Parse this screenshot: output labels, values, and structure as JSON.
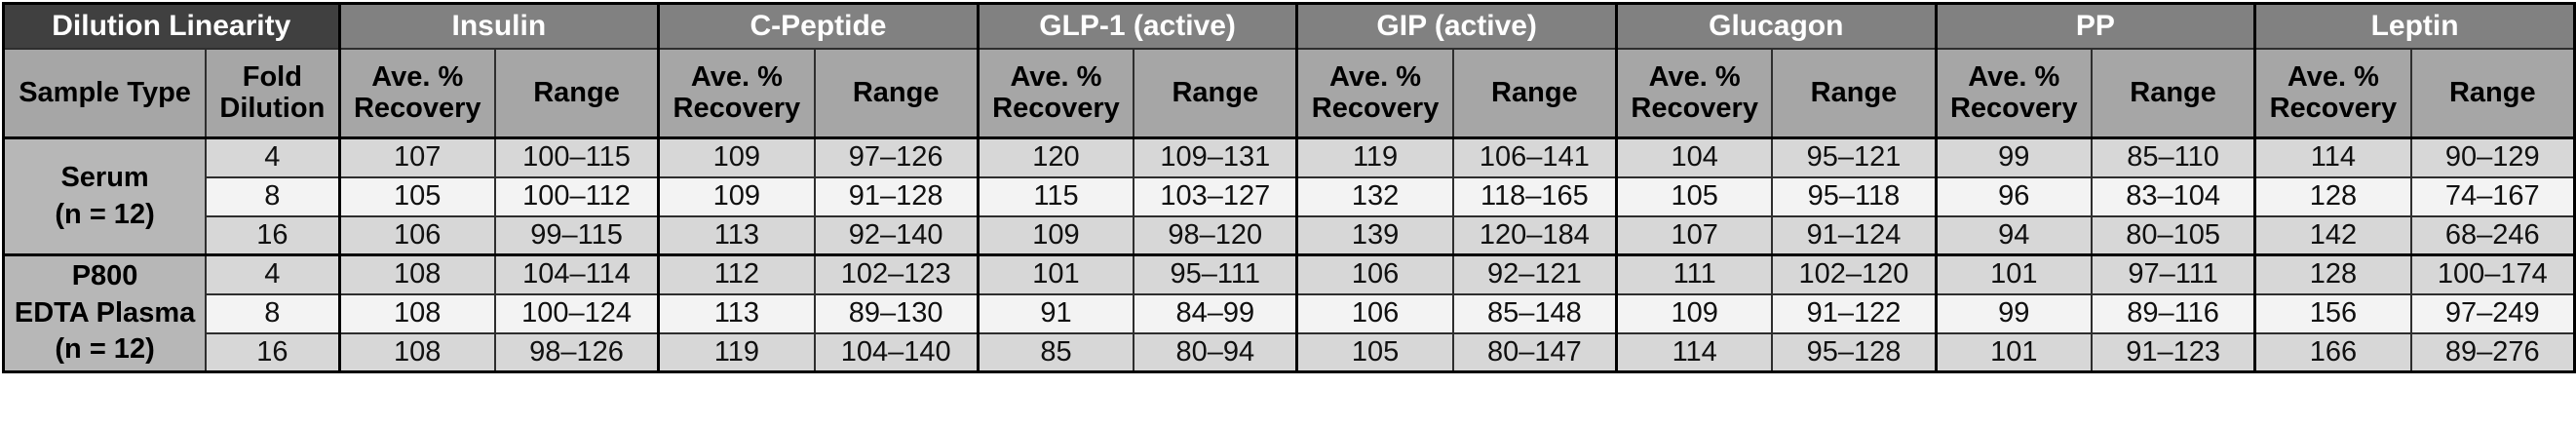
{
  "title": "Dilution Linearity",
  "colors": {
    "corner_header_bg": "#404040",
    "analyte_header_bg": "#818181",
    "subheader_bg": "#a6a6a6",
    "sample_cell_bg": "#b7b7b7",
    "row_gray_bg": "#d7d7d7",
    "row_light_bg": "#f3f3f3",
    "header_text": "#ffffff",
    "body_text": "#101010",
    "border": "#000000"
  },
  "table": {
    "corner_header": "Dilution Linearity",
    "analytes": [
      "Insulin",
      "C-Peptide",
      "GLP-1 (active)",
      "GIP (active)",
      "Glucagon",
      "PP",
      "Leptin"
    ],
    "sub_headers": {
      "sample_type": "Sample Type",
      "fold_dilution": "Fold\nDilution",
      "ave_recovery": "Ave. %\nRecovery",
      "range": "Range"
    },
    "sections": [
      {
        "sample_type": "Serum\n(n = 12)",
        "rows": [
          {
            "fold": "4",
            "values": [
              {
                "analyte": "Insulin",
                "ave": "107",
                "range": "100–115"
              },
              {
                "analyte": "C-Peptide",
                "ave": "109",
                "range": "97–126"
              },
              {
                "analyte": "GLP-1 (active)",
                "ave": "120",
                "range": "109–131"
              },
              {
                "analyte": "GIP (active)",
                "ave": "119",
                "range": "106–141"
              },
              {
                "analyte": "Glucagon",
                "ave": "104",
                "range": "95–121"
              },
              {
                "analyte": "PP",
                "ave": "99",
                "range": "85–110"
              },
              {
                "analyte": "Leptin",
                "ave": "114",
                "range": "90–129"
              }
            ]
          },
          {
            "fold": "8",
            "values": [
              {
                "analyte": "Insulin",
                "ave": "105",
                "range": "100–112"
              },
              {
                "analyte": "C-Peptide",
                "ave": "109",
                "range": "91–128"
              },
              {
                "analyte": "GLP-1 (active)",
                "ave": "115",
                "range": "103–127"
              },
              {
                "analyte": "GIP (active)",
                "ave": "132",
                "range": "118–165"
              },
              {
                "analyte": "Glucagon",
                "ave": "105",
                "range": "95–118"
              },
              {
                "analyte": "PP",
                "ave": "96",
                "range": "83–104"
              },
              {
                "analyte": "Leptin",
                "ave": "128",
                "range": "74–167"
              }
            ]
          },
          {
            "fold": "16",
            "values": [
              {
                "analyte": "Insulin",
                "ave": "106",
                "range": "99–115"
              },
              {
                "analyte": "C-Peptide",
                "ave": "113",
                "range": "92–140"
              },
              {
                "analyte": "GLP-1 (active)",
                "ave": "109",
                "range": "98–120"
              },
              {
                "analyte": "GIP (active)",
                "ave": "139",
                "range": "120–184"
              },
              {
                "analyte": "Glucagon",
                "ave": "107",
                "range": "91–124"
              },
              {
                "analyte": "PP",
                "ave": "94",
                "range": "80–105"
              },
              {
                "analyte": "Leptin",
                "ave": "142",
                "range": "68–246"
              }
            ]
          }
        ]
      },
      {
        "sample_type": "P800\nEDTA Plasma\n(n = 12)",
        "rows": [
          {
            "fold": "4",
            "values": [
              {
                "analyte": "Insulin",
                "ave": "108",
                "range": "104–114"
              },
              {
                "analyte": "C-Peptide",
                "ave": "112",
                "range": "102–123"
              },
              {
                "analyte": "GLP-1 (active)",
                "ave": "101",
                "range": "95–111"
              },
              {
                "analyte": "GIP (active)",
                "ave": "106",
                "range": "92–121"
              },
              {
                "analyte": "Glucagon",
                "ave": "111",
                "range": "102–120"
              },
              {
                "analyte": "PP",
                "ave": "101",
                "range": "97–111"
              },
              {
                "analyte": "Leptin",
                "ave": "128",
                "range": "100–174"
              }
            ]
          },
          {
            "fold": "8",
            "values": [
              {
                "analyte": "Insulin",
                "ave": "108",
                "range": "100–124"
              },
              {
                "analyte": "C-Peptide",
                "ave": "113",
                "range": "89–130"
              },
              {
                "analyte": "GLP-1 (active)",
                "ave": "91",
                "range": "84–99"
              },
              {
                "analyte": "GIP (active)",
                "ave": "106",
                "range": "85–148"
              },
              {
                "analyte": "Glucagon",
                "ave": "109",
                "range": "91–122"
              },
              {
                "analyte": "PP",
                "ave": "99",
                "range": "89–116"
              },
              {
                "analyte": "Leptin",
                "ave": "156",
                "range": "97–249"
              }
            ]
          },
          {
            "fold": "16",
            "values": [
              {
                "analyte": "Insulin",
                "ave": "108",
                "range": "98–126"
              },
              {
                "analyte": "C-Peptide",
                "ave": "119",
                "range": "104–140"
              },
              {
                "analyte": "GLP-1 (active)",
                "ave": "85",
                "range": "80–94"
              },
              {
                "analyte": "GIP (active)",
                "ave": "105",
                "range": "80–147"
              },
              {
                "analyte": "Glucagon",
                "ave": "114",
                "range": "95–128"
              },
              {
                "analyte": "PP",
                "ave": "101",
                "range": "91–123"
              },
              {
                "analyte": "Leptin",
                "ave": "166",
                "range": "89–276"
              }
            ]
          }
        ]
      }
    ],
    "layout": {
      "sample_col_width": 208,
      "fold_col_width": 137,
      "ave_col_width": 160,
      "range_col_width": 168
    }
  }
}
